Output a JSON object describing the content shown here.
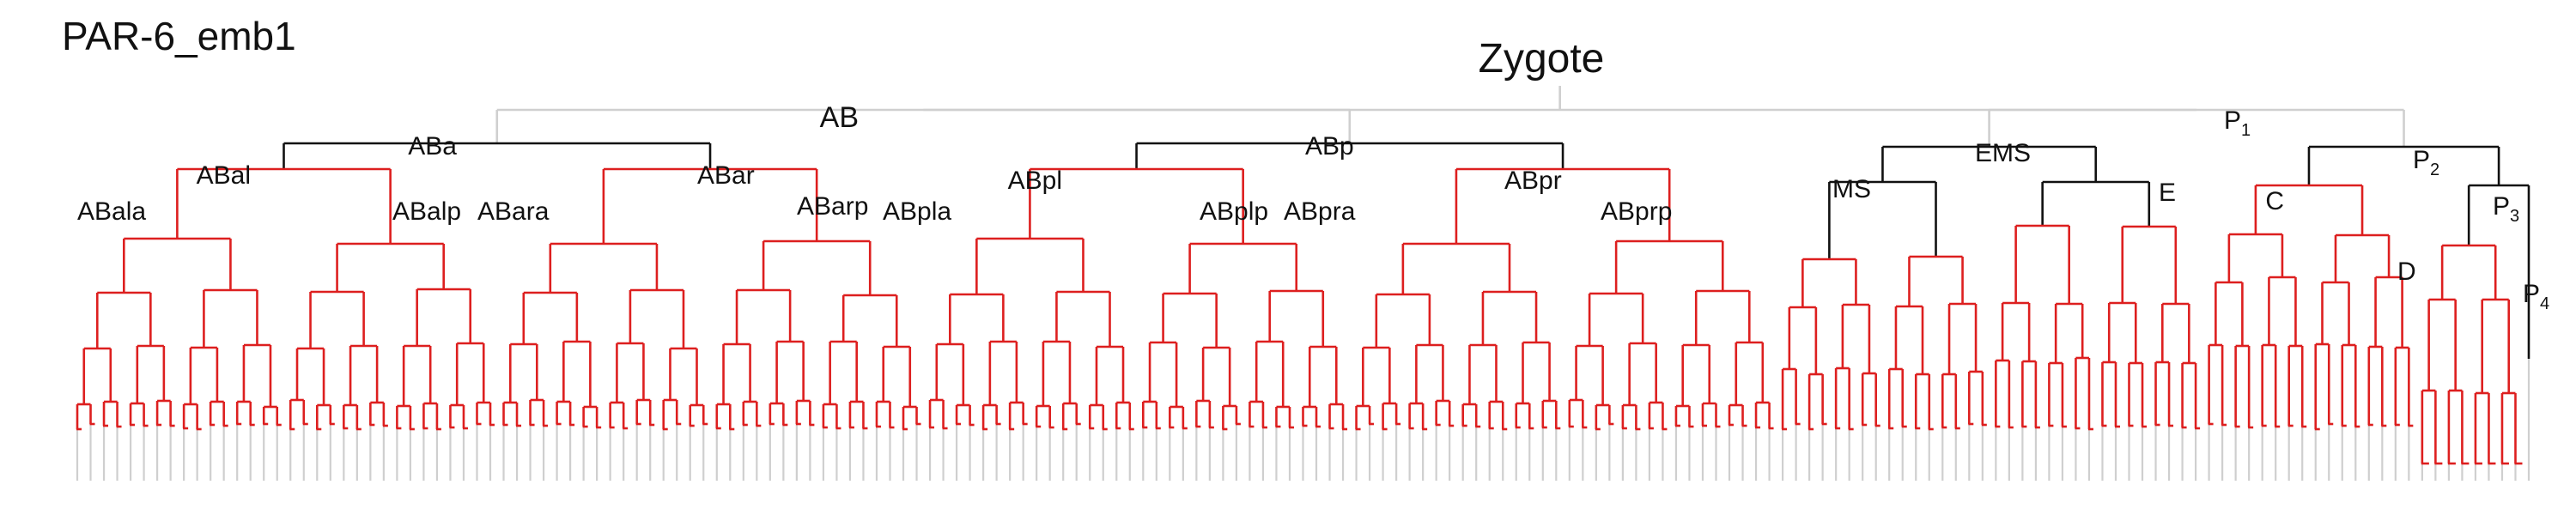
{
  "figure": {
    "corner_title": "PAR-6_emb1",
    "root_label": "Zygote",
    "colors": {
      "gray": "#cfcfcf",
      "black": "#111111",
      "red": "#dd1f1f",
      "text": "#111111"
    }
  },
  "labels": [
    {
      "key": "AB",
      "text": "AB"
    },
    {
      "key": "P1",
      "text": "P",
      "sub": "1"
    },
    {
      "key": "ABa",
      "text": "ABa"
    },
    {
      "key": "ABp",
      "text": "ABp"
    },
    {
      "key": "EMS",
      "text": "EMS"
    },
    {
      "key": "P2",
      "text": "P",
      "sub": "2"
    },
    {
      "key": "ABal",
      "text": "ABal"
    },
    {
      "key": "ABar",
      "text": "ABar"
    },
    {
      "key": "ABpl",
      "text": "ABpl"
    },
    {
      "key": "ABpr",
      "text": "ABpr"
    },
    {
      "key": "MS",
      "text": "MS"
    },
    {
      "key": "E",
      "text": "E"
    },
    {
      "key": "C",
      "text": "C"
    },
    {
      "key": "P3",
      "text": "P",
      "sub": "3"
    },
    {
      "key": "ABala",
      "text": "ABala"
    },
    {
      "key": "ABalp",
      "text": "ABalp"
    },
    {
      "key": "ABara",
      "text": "ABara"
    },
    {
      "key": "ABarp",
      "text": "ABarp"
    },
    {
      "key": "ABpla",
      "text": "ABpla"
    },
    {
      "key": "ABplp",
      "text": "ABplp"
    },
    {
      "key": "ABpra",
      "text": "ABpra"
    },
    {
      "key": "ABprp",
      "text": "ABprp"
    },
    {
      "key": "D",
      "text": "D"
    },
    {
      "key": "P4",
      "text": "P",
      "sub": "4"
    }
  ]
}
